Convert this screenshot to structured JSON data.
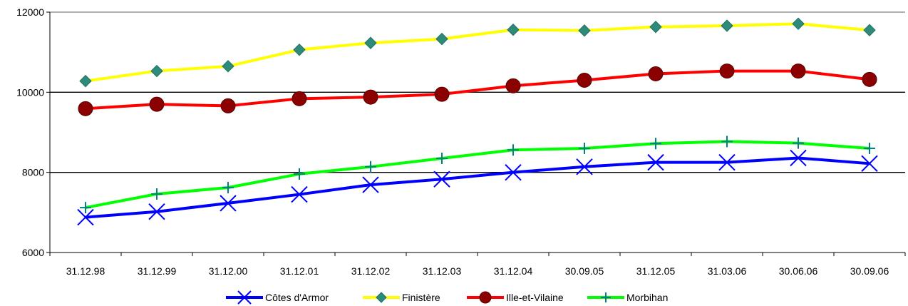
{
  "chart_data": {
    "type": "line",
    "categories": [
      "31.12.98",
      "31.12.99",
      "31.12.00",
      "31.12.01",
      "31.12.02",
      "31.12.03",
      "31.12.04",
      "30.09.05",
      "31.12.05",
      "31.03.06",
      "30.06.06",
      "30.09.06"
    ],
    "ylim": [
      6000,
      12000
    ],
    "yticks": [
      6000,
      8000,
      10000,
      12000
    ],
    "grid": true,
    "legend_position": "bottom",
    "series": [
      {
        "name": "Côtes d'Armor",
        "color": "#0000ff",
        "marker": "x",
        "values": [
          6880,
          7020,
          7230,
          7450,
          7690,
          7830,
          8000,
          8140,
          8250,
          8250,
          8360,
          8220
        ]
      },
      {
        "name": "Finistère",
        "color": "#ffff00",
        "marker": "diamond",
        "marker_color": "#2e8b7a",
        "values": [
          10280,
          10530,
          10650,
          11060,
          11230,
          11330,
          11560,
          11540,
          11630,
          11660,
          11710,
          11550
        ]
      },
      {
        "name": "Ille-et-Vilaine",
        "color": "#ff0000",
        "marker": "circle",
        "marker_color": "#8b0000",
        "values": [
          9590,
          9700,
          9660,
          9840,
          9880,
          9950,
          10160,
          10300,
          10460,
          10530,
          10530,
          10320
        ]
      },
      {
        "name": "Morbihan",
        "color": "#00ff00",
        "marker": "plus",
        "marker_color": "#008080",
        "values": [
          7120,
          7460,
          7620,
          7960,
          8140,
          8350,
          8560,
          8600,
          8720,
          8770,
          8730,
          8600
        ]
      }
    ]
  }
}
